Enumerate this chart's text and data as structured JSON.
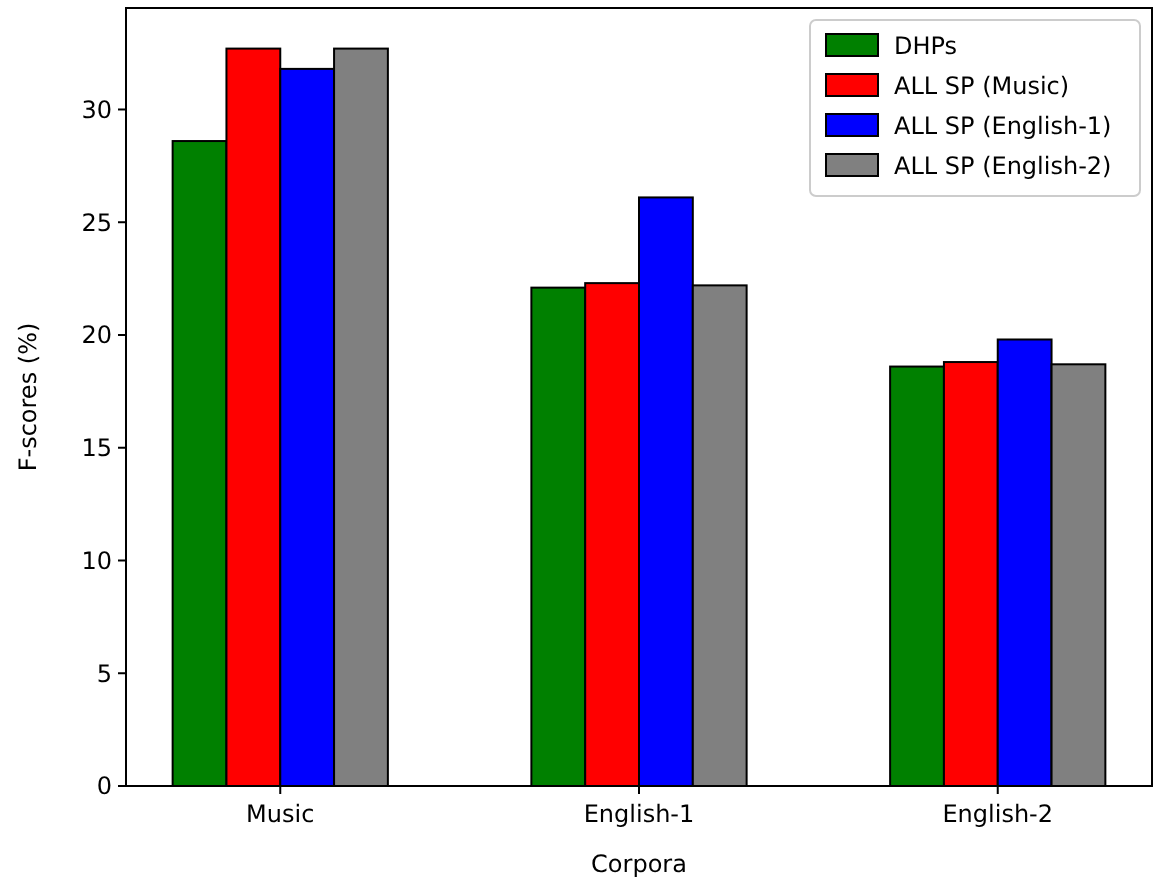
{
  "chart_data": {
    "type": "bar",
    "xlabel": "Corpora",
    "ylabel": "F-scores (%)",
    "categories": [
      "Music",
      "English-1",
      "English-2"
    ],
    "series": [
      {
        "name": "DHPs",
        "color": "#008000",
        "values": [
          28.6,
          22.1,
          18.6
        ]
      },
      {
        "name": "ALL SP (Music)",
        "color": "#ff0000",
        "values": [
          32.7,
          22.3,
          18.8
        ]
      },
      {
        "name": "ALL SP (English-1)",
        "color": "#0000ff",
        "values": [
          31.8,
          26.1,
          19.8
        ]
      },
      {
        "name": "ALL SP (English-2)",
        "color": "#808080",
        "values": [
          32.7,
          22.2,
          18.7
        ]
      }
    ],
    "ylim": [
      0,
      34.5
    ],
    "yticks": [
      0,
      5,
      10,
      15,
      20,
      25,
      30
    ],
    "legend": "top right"
  }
}
